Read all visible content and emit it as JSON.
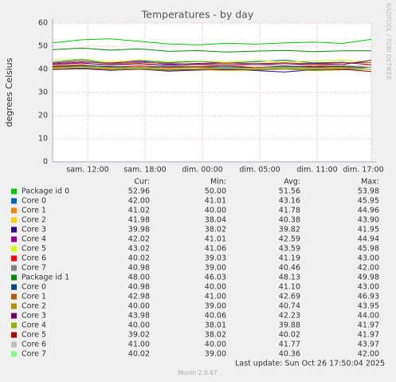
{
  "chart_data": {
    "type": "line",
    "title": "Temperatures - by day",
    "y_label": "degrees Celsius",
    "side_label": "RRDTOOL / TOBI OETIKER",
    "x": [
      0,
      1,
      2,
      3,
      4,
      5,
      6,
      7,
      8,
      9,
      10,
      11
    ],
    "xlim": [
      0,
      11
    ],
    "xticks": [
      {
        "value": 1.21,
        "label": "sam. 12:00"
      },
      {
        "value": 3.19,
        "label": "sam. 18:00"
      },
      {
        "value": 5.17,
        "label": "dim. 00:00"
      },
      {
        "value": 7.15,
        "label": "dim. 05:00"
      },
      {
        "value": 9.13,
        "label": "dim. 11:00"
      },
      {
        "value": 11,
        "label": "dim. 17:00"
      }
    ],
    "ylim": [
      0,
      60
    ],
    "yticks": [
      0,
      10,
      20,
      30,
      40,
      50,
      60
    ],
    "grid": true,
    "legend_columns": [
      "Cur:",
      "Min:",
      "Avg:",
      "Max:"
    ],
    "series": [
      {
        "name": "Package id 0",
        "color": "#00cc00",
        "stats": [
          "52.96",
          "50.00",
          "51.56",
          "53.98"
        ],
        "values": [
          51.5,
          52.8,
          53.2,
          52.1,
          51,
          50.6,
          51.3,
          50.9,
          51.4,
          51.8,
          51.2,
          52.96
        ]
      },
      {
        "name": "Core 0",
        "color": "#0066b3",
        "stats": [
          "42.00",
          "41.01",
          "43.16",
          "45.95"
        ],
        "values": [
          43,
          44.2,
          42.5,
          43.8,
          42.9,
          43.5,
          42.7,
          43.3,
          44,
          42.8,
          43.1,
          42
        ]
      },
      {
        "name": "Core 1",
        "color": "#ff8000",
        "stats": [
          "41.02",
          "40.00",
          "41.78",
          "44.96"
        ],
        "values": [
          41.5,
          42.3,
          41.9,
          42.6,
          41.2,
          41.8,
          42.1,
          41.4,
          41.9,
          42.2,
          41.6,
          41.02
        ]
      },
      {
        "name": "Core 2",
        "color": "#ffcc00",
        "stats": [
          "41.98",
          "38.04",
          "40.38",
          "43.90"
        ],
        "values": [
          40.2,
          40.8,
          41,
          40.5,
          39.7,
          40.1,
          40.6,
          39.9,
          40.4,
          40.3,
          40.7,
          41.98
        ]
      },
      {
        "name": "Core 3",
        "color": "#330099",
        "stats": [
          "39.98",
          "38.02",
          "39.82",
          "41.95"
        ],
        "values": [
          39.9,
          40.3,
          39.6,
          40.1,
          39.2,
          39.7,
          40,
          39.5,
          38.9,
          39.8,
          40.2,
          39.98
        ]
      },
      {
        "name": "Core 4",
        "color": "#990099",
        "stats": [
          "42.02",
          "41.01",
          "42.59",
          "44.94"
        ],
        "values": [
          42.4,
          43.1,
          42.8,
          43.5,
          42.2,
          42.6,
          42.9,
          42.3,
          42.7,
          42.5,
          43,
          42.02
        ]
      },
      {
        "name": "Core 5",
        "color": "#ccff00",
        "stats": [
          "43.02",
          "41.06",
          "43.59",
          "45.98"
        ],
        "values": [
          43.8,
          44.5,
          43.2,
          44.1,
          43.4,
          43.7,
          43,
          43.9,
          43.3,
          43.6,
          44,
          43.02
        ]
      },
      {
        "name": "Core 6",
        "color": "#ff0000",
        "stats": [
          "40.02",
          "39.03",
          "41.19",
          "43.00"
        ],
        "values": [
          41.3,
          41.8,
          41,
          41.5,
          40.9,
          41.2,
          41.6,
          40.8,
          41.1,
          41.4,
          41.3,
          40.02
        ]
      },
      {
        "name": "Core 7",
        "color": "#808080",
        "stats": [
          "40.98",
          "39.00",
          "40.46",
          "42.00"
        ],
        "values": [
          40.5,
          41,
          40.2,
          40.8,
          40.1,
          40.4,
          40.7,
          40.3,
          40.6,
          40.2,
          40.5,
          40.98
        ]
      },
      {
        "name": "Package id 1",
        "color": "#008f00",
        "stats": [
          "48.00",
          "46.03",
          "48.13",
          "49.98"
        ],
        "values": [
          48.5,
          49.2,
          48.3,
          48.9,
          47.8,
          48.1,
          47.5,
          47.9,
          48.2,
          47.7,
          48,
          48
        ]
      },
      {
        "name": "Core 0",
        "color": "#00487d",
        "stats": [
          "40.98",
          "40.00",
          "41.10",
          "43.00"
        ],
        "values": [
          41,
          41.6,
          41.2,
          40.8,
          41.3,
          40.9,
          41.1,
          40.7,
          41.4,
          41,
          41.2,
          40.98
        ]
      },
      {
        "name": "Core 1",
        "color": "#b35a00",
        "stats": [
          "42.98",
          "41.00",
          "42.69",
          "46.93"
        ],
        "values": [
          42.8,
          43.5,
          42.4,
          43,
          42.6,
          42.3,
          42.7,
          42.5,
          42.9,
          42.4,
          42.8,
          42.98
        ]
      },
      {
        "name": "Core 2",
        "color": "#b38f00",
        "stats": [
          "40.00",
          "39.00",
          "40.74",
          "43.95"
        ],
        "values": [
          40.8,
          41.3,
          40.6,
          41,
          40.5,
          40.9,
          40.4,
          40.7,
          41,
          40.6,
          40.9,
          40
        ]
      },
      {
        "name": "Core 3",
        "color": "#6b006b",
        "stats": [
          "43.98",
          "40.06",
          "42.23",
          "44.00"
        ],
        "values": [
          42.1,
          42.7,
          42,
          42.5,
          41.8,
          42.2,
          41.9,
          42.3,
          42,
          42.4,
          42.1,
          43.98
        ]
      },
      {
        "name": "Core 4",
        "color": "#8fb300",
        "stats": [
          "40.00",
          "38.01",
          "39.88",
          "41.97"
        ],
        "values": [
          40,
          40.5,
          39.8,
          40.2,
          39.5,
          39.9,
          39.6,
          39.7,
          40.1,
          39.5,
          39.8,
          40
        ]
      },
      {
        "name": "Core 5",
        "color": "#b30000",
        "stats": [
          "39.02",
          "38.02",
          "40.02",
          "41.97"
        ],
        "values": [
          40.1,
          40.6,
          40,
          40.4,
          39.7,
          39.9,
          40.2,
          39.8,
          40.3,
          39.9,
          40.1,
          39.02
        ]
      },
      {
        "name": "Core 6",
        "color": "#bebebe",
        "stats": [
          "41.00",
          "40.00",
          "41.77",
          "43.97"
        ],
        "values": [
          41.8,
          42.4,
          41.6,
          42,
          41.5,
          41.9,
          41.7,
          41.6,
          42,
          41.7,
          41.9,
          41
        ]
      },
      {
        "name": "Core 7",
        "color": "#80ff80",
        "stats": [
          "40.02",
          "39.00",
          "40.36",
          "42.00"
        ],
        "values": [
          40.4,
          40.9,
          40.2,
          40.6,
          40,
          40.3,
          40.5,
          40.1,
          40.4,
          40.2,
          40.5,
          40.02
        ]
      }
    ],
    "last_update": "Last update: Sun Oct 26 17:50:04 2025",
    "footer": "Munin 2.0.67"
  }
}
